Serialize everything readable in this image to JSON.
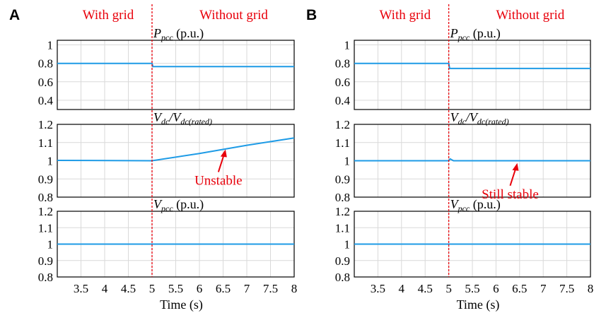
{
  "panels": [
    {
      "letter": "A",
      "region_left": "With grid",
      "region_right": "Without grid",
      "annotation": "Unstable"
    },
    {
      "letter": "B",
      "region_left": "With grid",
      "region_right": "Without grid",
      "annotation": "Still stable"
    }
  ],
  "colors": {
    "trace": "#1e9be6",
    "marker": "#e8000b",
    "grid": "#d9d9d9",
    "axis": "#000000"
  },
  "chart_data": [
    {
      "type": "line",
      "panel": "A",
      "xlabel": "Time (s)",
      "xlim": [
        3,
        8
      ],
      "xticks": [
        3.5,
        4,
        4.5,
        5,
        5.5,
        6,
        6.5,
        7,
        7.5,
        8
      ],
      "event_line_x": 5,
      "grid": true,
      "subplots": [
        {
          "ylabel": "P_pcc (p.u.)",
          "title_parts": {
            "main": "P",
            "sub": "pcc",
            "suffix": "(p.u.)"
          },
          "ylim": [
            0.3,
            1.05
          ],
          "yticks": [
            1,
            0.8,
            0.6,
            0.4
          ],
          "series": [
            {
              "x": [
                3,
                5,
                5.02,
                8
              ],
              "y": [
                0.8,
                0.8,
                0.765,
                0.765
              ]
            }
          ]
        },
        {
          "ylabel": "V_dc/V_dc(rated)",
          "title_parts": {
            "main": "V",
            "sub": "dc",
            "sep": "/V",
            "sub2": "dc(rated)"
          },
          "ylim": [
            0.8,
            1.2
          ],
          "yticks": [
            1.2,
            1.1,
            1,
            0.9,
            0.8
          ],
          "series": [
            {
              "x": [
                3,
                5,
                6,
                7,
                8
              ],
              "y": [
                1.002,
                1.0,
                1.04,
                1.085,
                1.125
              ]
            }
          ],
          "annotation_point": [
            6.55,
            1.07
          ]
        },
        {
          "ylabel": "V_pcc (p.u.)",
          "title_parts": {
            "main": "V",
            "sub": "pcc",
            "suffix": "(p.u.)"
          },
          "ylim": [
            0.8,
            1.2
          ],
          "yticks": [
            1.2,
            1.1,
            1,
            0.9,
            0.8
          ],
          "series": [
            {
              "x": [
                3,
                5,
                5.02,
                8
              ],
              "y": [
                1.0,
                1.0,
                1.0,
                1.0
              ]
            }
          ]
        }
      ]
    },
    {
      "type": "line",
      "panel": "B",
      "xlabel": "Time (s)",
      "xlim": [
        3,
        8
      ],
      "xticks": [
        3.5,
        4,
        4.5,
        5,
        5.5,
        6,
        6.5,
        7,
        7.5,
        8
      ],
      "event_line_x": 5,
      "grid": true,
      "subplots": [
        {
          "ylabel": "P_pcc (p.u.)",
          "title_parts": {
            "main": "P",
            "sub": "pcc",
            "suffix": "(p.u.)"
          },
          "ylim": [
            0.3,
            1.05
          ],
          "yticks": [
            1,
            0.8,
            0.6,
            0.4
          ],
          "series": [
            {
              "x": [
                3,
                5,
                5.02,
                8
              ],
              "y": [
                0.8,
                0.8,
                0.745,
                0.745
              ]
            }
          ]
        },
        {
          "ylabel": "V_dc/V_dc(rated)",
          "title_parts": {
            "main": "V",
            "sub": "dc",
            "sep": "/V",
            "sub2": "dc(rated)"
          },
          "ylim": [
            0.8,
            1.2
          ],
          "yticks": [
            1.2,
            1.1,
            1,
            0.9,
            0.8
          ],
          "series": [
            {
              "x": [
                3,
                5,
                5.03,
                5.1,
                8
              ],
              "y": [
                1.0,
                1.0,
                1.01,
                1.0,
                1.0
              ]
            }
          ],
          "annotation_point": [
            6.45,
            0.995
          ]
        },
        {
          "ylabel": "V_pcc (p.u.)",
          "title_parts": {
            "main": "V",
            "sub": "pcc",
            "suffix": "(p.u.)"
          },
          "ylim": [
            0.8,
            1.2
          ],
          "yticks": [
            1.2,
            1.1,
            1,
            0.9,
            0.8
          ],
          "series": [
            {
              "x": [
                3,
                5,
                8
              ],
              "y": [
                1.0,
                1.0,
                1.0
              ]
            }
          ]
        }
      ]
    }
  ]
}
